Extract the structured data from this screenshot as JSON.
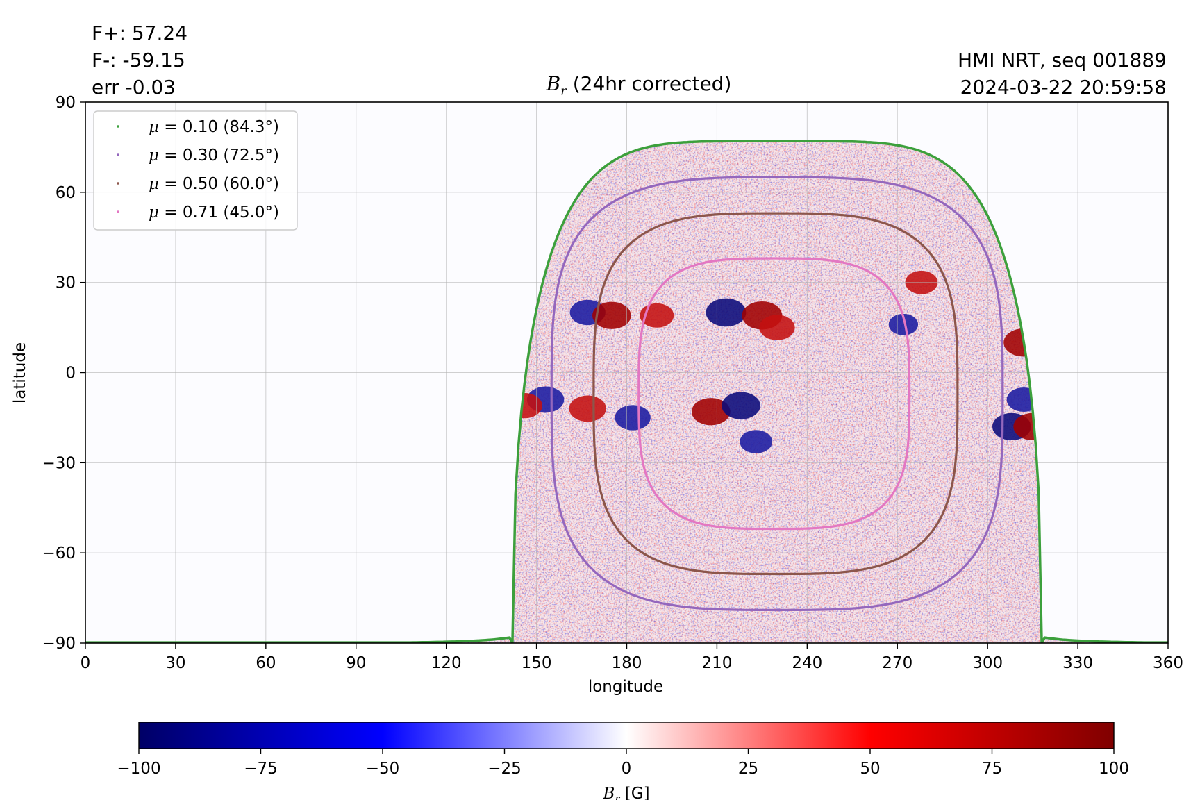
{
  "header": {
    "flux_plus": "F+: 57.24",
    "flux_minus": "F-: -59.15",
    "flux_err": "err -0.03",
    "source": "HMI NRT, seq 001889",
    "datetime": "2024-03-22 20:59:58"
  },
  "colorbar": {
    "ticks": [
      -100,
      -75,
      -50,
      -25,
      0,
      25,
      50,
      75,
      100
    ],
    "tick_labels": [
      "−100",
      "−75",
      "−50",
      "−25",
      "0",
      "25",
      "50",
      "75",
      "100"
    ],
    "label_symbol": "B",
    "label_sub": "r",
    "label_unit": " [G]",
    "colors": [
      "#000066",
      "#0000ff",
      "#ffffff",
      "#ff0000",
      "#800000"
    ]
  },
  "chart_data": {
    "type": "heatmap",
    "title_symbol": "B",
    "title_sub": "r",
    "title_rest": " (24hr corrected)",
    "xlabel": "longitude",
    "ylabel": "latitude",
    "xlim": [
      0,
      360
    ],
    "ylim": [
      -90,
      90
    ],
    "xticks": [
      0,
      30,
      60,
      90,
      120,
      150,
      180,
      210,
      240,
      270,
      300,
      330,
      360
    ],
    "yticks": [
      -90,
      -60,
      -30,
      0,
      30,
      60,
      90
    ],
    "ytick_labels": [
      "−90",
      "−60",
      "−30",
      "0",
      "30",
      "60",
      "90"
    ],
    "grid": true,
    "value_range": [
      -100,
      100
    ],
    "legend_position": "top-left",
    "contours": [
      {
        "mu": "0.10",
        "angle": "84.3",
        "color": "#3ca03c",
        "x_range": [
          0,
          360
        ],
        "lat_top": 77,
        "lat_bottom": -90
      },
      {
        "mu": "0.30",
        "angle": "72.5",
        "color": "#9467bd",
        "x_range": [
          155,
          305
        ],
        "lat_top": 65,
        "lat_bottom": -79
      },
      {
        "mu": "0.50",
        "angle": "60.0",
        "color": "#8c564b",
        "x_range": [
          169,
          290
        ],
        "lat_top": 53,
        "lat_bottom": -67
      },
      {
        "mu": "0.71",
        "angle": "45.0",
        "color": "#e377c2",
        "x_range": [
          184,
          274
        ],
        "lat_top": 38,
        "lat_bottom": -52
      }
    ],
    "active_regions": [
      {
        "lon": 213,
        "lat": 20,
        "value": -95
      },
      {
        "lon": 225,
        "lat": 19,
        "value": 95
      },
      {
        "lon": 230,
        "lat": 15,
        "value": 80
      },
      {
        "lon": 208,
        "lat": -13,
        "value": 90
      },
      {
        "lon": 218,
        "lat": -11,
        "value": -90
      },
      {
        "lon": 182,
        "lat": -15,
        "value": -80
      },
      {
        "lon": 190,
        "lat": 19,
        "value": 75
      },
      {
        "lon": 167,
        "lat": 20,
        "value": -80
      },
      {
        "lon": 175,
        "lat": 19,
        "value": 90
      },
      {
        "lon": 167,
        "lat": -12,
        "value": 85
      },
      {
        "lon": 153,
        "lat": -9,
        "value": -85
      },
      {
        "lon": 146,
        "lat": -11,
        "value": 80
      },
      {
        "lon": 312,
        "lat": 10,
        "value": 95
      },
      {
        "lon": 308,
        "lat": -18,
        "value": -90
      },
      {
        "lon": 315,
        "lat": -18,
        "value": 90
      },
      {
        "lon": 312,
        "lat": -9,
        "value": -75
      },
      {
        "lon": 278,
        "lat": 30,
        "value": 70
      },
      {
        "lon": 223,
        "lat": -23,
        "value": -70
      },
      {
        "lon": 272,
        "lat": 16,
        "value": -60
      }
    ]
  }
}
